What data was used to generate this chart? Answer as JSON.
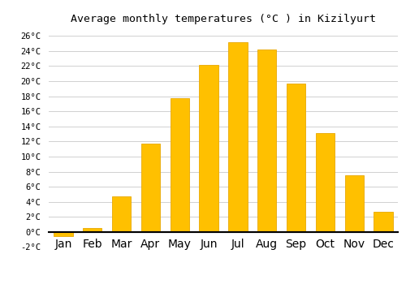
{
  "title": "Average monthly temperatures (°C ) in Kizilyurt",
  "months": [
    "Jan",
    "Feb",
    "Mar",
    "Apr",
    "May",
    "Jun",
    "Jul",
    "Aug",
    "Sep",
    "Oct",
    "Nov",
    "Dec"
  ],
  "values": [
    -0.5,
    0.5,
    4.7,
    11.7,
    17.7,
    22.2,
    25.2,
    24.2,
    19.7,
    13.1,
    7.5,
    2.7
  ],
  "bar_color": "#FFC000",
  "bar_edge_color": "#E8A800",
  "ylim": [
    -2,
    27
  ],
  "yticks": [
    -2,
    0,
    2,
    4,
    6,
    8,
    10,
    12,
    14,
    16,
    18,
    20,
    22,
    24,
    26
  ],
  "ytick_labels": [
    "-2°C",
    "0°C",
    "2°C",
    "4°C",
    "6°C",
    "8°C",
    "10°C",
    "12°C",
    "14°C",
    "16°C",
    "18°C",
    "20°C",
    "22°C",
    "24°C",
    "26°C"
  ],
  "grid_color": "#d0d0d0",
  "background_color": "#ffffff",
  "title_fontsize": 9.5,
  "tick_fontsize": 7.5,
  "bar_width": 0.65
}
